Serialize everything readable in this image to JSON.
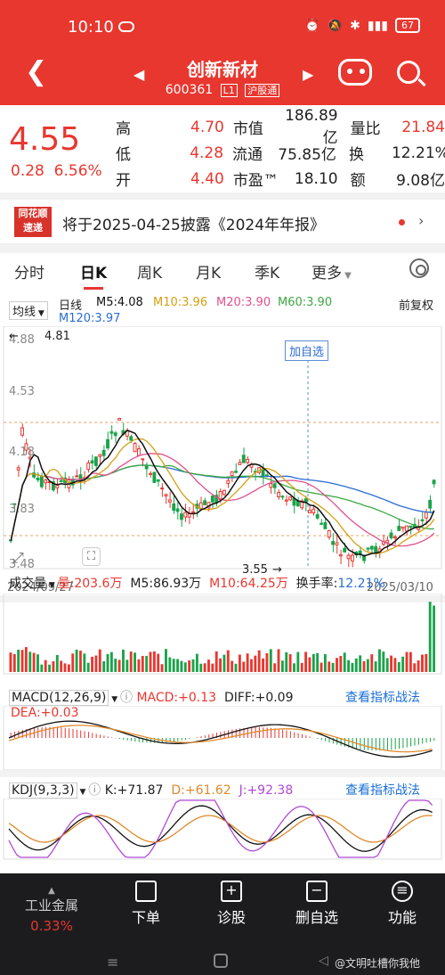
{
  "status": {
    "time": "10:10",
    "battery": "67"
  },
  "header": {
    "name": "创新新材",
    "code": "600361",
    "level": "L1",
    "market": "沪股通"
  },
  "quote": {
    "price": "4.55",
    "change": "0.28",
    "change_pct": "6.56%",
    "rows": [
      {
        "l1": "高",
        "v1": "4.70",
        "l2": "市值",
        "v2": "186.89亿",
        "l3": "量比",
        "v3": "21.84"
      },
      {
        "l1": "低",
        "v1": "4.28",
        "l2": "流通",
        "v2": "75.85亿",
        "l3": "换",
        "v3": "12.21%"
      },
      {
        "l1": "开",
        "v1": "4.40",
        "l2": "市盈™",
        "v2": "18.10",
        "l3": "额",
        "v3": "9.08亿"
      }
    ]
  },
  "notice": {
    "logo_line1": "同花顺",
    "logo_line2": "速递",
    "text": "将于2025-04-25披露《2024年年报》"
  },
  "tabs": [
    "分时",
    "日K",
    "周K",
    "月K",
    "季K",
    "更多"
  ],
  "kline": {
    "ma_toggle": "均线",
    "period": "日线",
    "ma5": "M5:4.08",
    "ma10": "M10:3.96",
    "ma20": "M20:3.90",
    "ma60": "M60:3.90",
    "ma120": "M120:3.97",
    "adjust": "前复权",
    "y_labels": [
      "4.88",
      "4.53",
      "4.18",
      "3.83",
      "3.48"
    ],
    "high_label": "4.81",
    "low_label": "3.55",
    "add_watch": "加自选",
    "date_start": "2024/09/27",
    "date_end": "2025/03/10",
    "colors": {
      "ma5": "#111111",
      "ma10": "#d4a012",
      "ma20": "#e0508c",
      "ma60": "#3da843",
      "ma120": "#2a6cd6",
      "up": "#e8372f",
      "down": "#1aa34a"
    }
  },
  "volume": {
    "title": "成交量",
    "vol": "量:203.6万",
    "m5": "M5:86.93万",
    "m10": "M10:64.25万",
    "turnover_label": "换手率:",
    "turnover": "12.21%"
  },
  "macd": {
    "title": "MACD(12,26,9)",
    "macd": "MACD:+0.13",
    "diff": "DIFF:+0.09",
    "dea": "DEA:+0.03",
    "link": "查看指标战法"
  },
  "kdj": {
    "title": "KDJ(9,3,3)",
    "k": "K:+71.87",
    "d": "D:+61.62",
    "j": "J:+92.38",
    "link": "查看指标战法"
  },
  "bottom": {
    "sector": "工业金属",
    "sector_pct": "0.33%",
    "items": [
      "下单",
      "诊股",
      "删自选",
      "功能"
    ]
  },
  "watermark": "@文明吐槽你我他"
}
